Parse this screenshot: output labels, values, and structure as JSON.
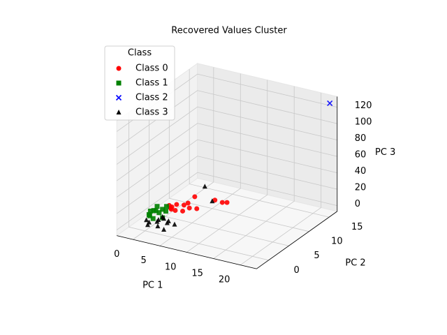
{
  "chart_data": {
    "type": "scatter3d",
    "title": "Recovered Values Cluster",
    "xlabel": "PC 1",
    "ylabel": "PC 2",
    "zlabel": "PC 3",
    "xlim": [
      -3,
      23
    ],
    "ylim": [
      -3,
      17
    ],
    "zlim": [
      -7,
      133
    ],
    "xticks": [
      0,
      5,
      10,
      15,
      20
    ],
    "yticks": [
      0,
      5,
      10,
      15
    ],
    "zticks": [
      0,
      20,
      40,
      60,
      80,
      100,
      120
    ],
    "grid": true,
    "legend": {
      "title": "Class",
      "loc": "upper left"
    },
    "series": [
      {
        "name": "Class 0",
        "color": "#ff0000",
        "marker": "circle",
        "x": [
          0.5,
          1,
          1.5,
          2,
          2.5,
          1,
          0,
          2,
          3,
          1.5,
          5.5,
          6.5,
          7,
          4,
          2.5
        ],
        "y": [
          6,
          6.5,
          5.5,
          7,
          6,
          5,
          6,
          8,
          7,
          4.5,
          10,
          10.5,
          11,
          7.5,
          9
        ],
        "z": [
          2,
          4,
          1,
          3,
          0,
          5,
          3,
          2,
          1,
          6,
          4,
          1,
          0,
          0,
          7
        ]
      },
      {
        "name": "Class 1",
        "color": "#008000",
        "marker": "square",
        "x": [
          -1.5,
          -1,
          -0.5,
          0,
          -1,
          -2,
          0.5,
          -0.5,
          1,
          -1.5,
          0,
          -1
        ],
        "y": [
          3,
          4,
          5,
          3.5,
          2.5,
          4,
          4.5,
          6,
          3,
          5,
          2,
          3.5
        ],
        "z": [
          0,
          2,
          1,
          3,
          1,
          0,
          2,
          1,
          0,
          3,
          1,
          4
        ]
      },
      {
        "name": "Class 2",
        "color": "#0000ff",
        "marker": "x",
        "x": [
          22
        ],
        "y": [
          16.5
        ],
        "z": [
          125
        ]
      },
      {
        "name": "Class 3",
        "color": "#000000",
        "marker": "triangle",
        "x": [
          0,
          1,
          2,
          3,
          1.5,
          0.5,
          2.5,
          -0.5,
          1,
          3.5,
          4,
          2,
          4,
          5
        ],
        "y": [
          1,
          2,
          0.5,
          1.5,
          1,
          0,
          2.5,
          1,
          3,
          0,
          9.5,
          2,
          2,
          10
        ],
        "z": [
          0,
          1,
          0,
          2,
          3,
          1,
          0,
          2,
          1,
          0,
          20,
          4,
          0,
          2
        ]
      }
    ]
  }
}
